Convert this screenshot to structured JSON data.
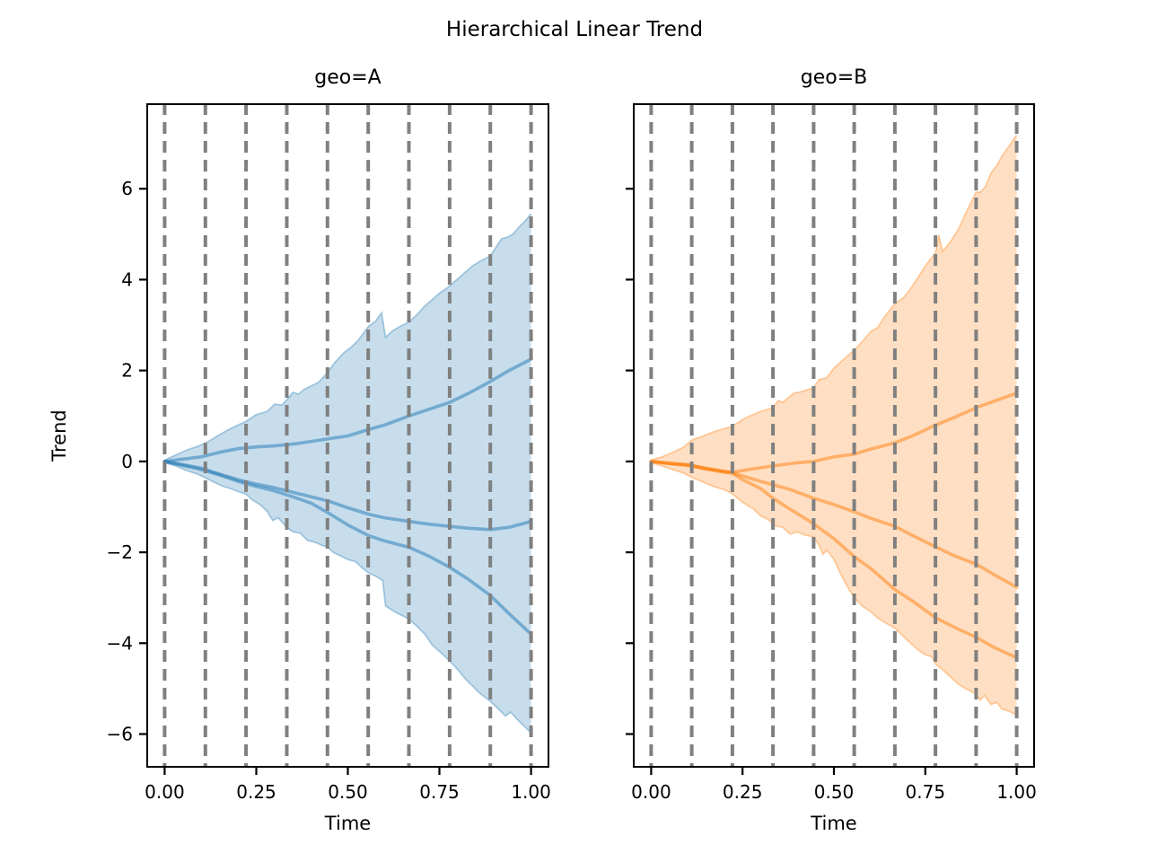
{
  "figure": {
    "suptitle": "Hierarchical Linear Trend",
    "background": "#ffffff"
  },
  "axes": {
    "xlabel": "Time",
    "ylabel": "Trend",
    "x_tick_labels": [
      "0.00",
      "0.25",
      "0.50",
      "0.75",
      "1.00"
    ],
    "x_tick_values": [
      0,
      0.25,
      0.5,
      0.75,
      1.0
    ],
    "y_tick_labels": [
      "6",
      "4",
      "2",
      "0",
      "−2",
      "−4",
      "−6"
    ],
    "y_tick_values": [
      6,
      4,
      2,
      0,
      -2,
      -4,
      -6
    ],
    "xlim": [
      -0.05,
      1.05
    ],
    "ylim": [
      -6.74,
      7.88
    ],
    "vline_positions": [
      0,
      0.1111,
      0.2222,
      0.3333,
      0.4444,
      0.5556,
      0.6667,
      0.7778,
      0.8889,
      1.0
    ],
    "vline_color": "#808080",
    "grid": "dashed-vertical"
  },
  "colors": {
    "geo_a": "#1f77b4",
    "geo_b": "#ff7f0e",
    "spine": "#000000",
    "text": "#000000"
  },
  "chart_data": [
    {
      "type": "area",
      "title": "geo=A",
      "color": "#1f77b4",
      "band": {
        "top_x": [
          0,
          0.03,
          0.06,
          0.09,
          0.111,
          0.14,
          0.17,
          0.2,
          0.222,
          0.25,
          0.28,
          0.3,
          0.32,
          0.333,
          0.35,
          0.365,
          0.38,
          0.4,
          0.42,
          0.444,
          0.465,
          0.489,
          0.51,
          0.53,
          0.556,
          0.575,
          0.592,
          0.603,
          0.62,
          0.64,
          0.667,
          0.69,
          0.71,
          0.73,
          0.75,
          0.778,
          0.8,
          0.82,
          0.84,
          0.86,
          0.889,
          0.905,
          0.92,
          0.935,
          0.95,
          0.97,
          0.985,
          1.0
        ],
        "top_y": [
          0.03,
          0.14,
          0.25,
          0.33,
          0.4,
          0.54,
          0.68,
          0.8,
          0.88,
          1.03,
          1.1,
          1.26,
          1.24,
          1.35,
          1.52,
          1.48,
          1.58,
          1.66,
          1.74,
          1.95,
          2.18,
          2.39,
          2.52,
          2.68,
          2.97,
          3.08,
          3.27,
          2.73,
          2.86,
          2.96,
          3.07,
          3.24,
          3.42,
          3.56,
          3.7,
          3.86,
          4.02,
          4.16,
          4.3,
          4.4,
          4.52,
          4.72,
          4.9,
          4.93,
          5.0,
          5.18,
          5.3,
          5.45
        ],
        "bottom_x": [
          0,
          0.03,
          0.06,
          0.09,
          0.111,
          0.14,
          0.16,
          0.18,
          0.2,
          0.222,
          0.24,
          0.26,
          0.28,
          0.295,
          0.31,
          0.333,
          0.35,
          0.37,
          0.39,
          0.41,
          0.43,
          0.444,
          0.46,
          0.48,
          0.5,
          0.52,
          0.54,
          0.556,
          0.575,
          0.595,
          0.603,
          0.61,
          0.63,
          0.65,
          0.667,
          0.69,
          0.71,
          0.73,
          0.75,
          0.778,
          0.8,
          0.82,
          0.84,
          0.86,
          0.889,
          0.91,
          0.93,
          0.945,
          0.96,
          0.98,
          1.0
        ],
        "bottom_y": [
          -0.03,
          -0.1,
          -0.2,
          -0.28,
          -0.36,
          -0.48,
          -0.55,
          -0.6,
          -0.66,
          -0.72,
          -0.85,
          -0.95,
          -1.1,
          -1.3,
          -1.24,
          -1.45,
          -1.55,
          -1.58,
          -1.74,
          -1.78,
          -1.85,
          -1.88,
          -2.0,
          -2.08,
          -2.16,
          -2.2,
          -2.35,
          -2.45,
          -2.52,
          -2.62,
          -3.18,
          -3.22,
          -3.32,
          -3.4,
          -3.47,
          -3.64,
          -3.8,
          -4.04,
          -4.18,
          -4.39,
          -4.58,
          -4.78,
          -4.94,
          -5.1,
          -5.28,
          -5.44,
          -5.6,
          -5.52,
          -5.66,
          -5.82,
          -5.97
        ]
      },
      "lines": [
        {
          "name": "sample-trend-up",
          "x": [
            0,
            0.05,
            0.1,
            0.15,
            0.2,
            0.25,
            0.3,
            0.35,
            0.4,
            0.45,
            0.5,
            0.556,
            0.6,
            0.667,
            0.72,
            0.778,
            0.83,
            0.889,
            0.94,
            1.0
          ],
          "y": [
            0,
            0.05,
            0.1,
            0.2,
            0.28,
            0.32,
            0.34,
            0.38,
            0.44,
            0.5,
            0.56,
            0.7,
            0.8,
            1.0,
            1.14,
            1.3,
            1.5,
            1.76,
            2.0,
            2.25
          ]
        },
        {
          "name": "sample-trend-mid",
          "x": [
            0,
            0.05,
            0.1,
            0.15,
            0.2,
            0.25,
            0.3,
            0.35,
            0.4,
            0.45,
            0.5,
            0.556,
            0.6,
            0.667,
            0.72,
            0.778,
            0.83,
            0.889,
            0.94,
            1.0
          ],
          "y": [
            0,
            -0.07,
            -0.15,
            -0.28,
            -0.4,
            -0.5,
            -0.58,
            -0.68,
            -0.78,
            -0.88,
            -1.02,
            -1.16,
            -1.24,
            -1.32,
            -1.38,
            -1.43,
            -1.47,
            -1.5,
            -1.45,
            -1.32
          ]
        },
        {
          "name": "sample-trend-low",
          "x": [
            0,
            0.05,
            0.1,
            0.15,
            0.2,
            0.25,
            0.3,
            0.35,
            0.4,
            0.45,
            0.5,
            0.556,
            0.6,
            0.667,
            0.72,
            0.778,
            0.83,
            0.889,
            0.94,
            1.0
          ],
          "y": [
            0,
            -0.09,
            -0.18,
            -0.3,
            -0.44,
            -0.55,
            -0.65,
            -0.78,
            -0.92,
            -1.15,
            -1.4,
            -1.63,
            -1.75,
            -1.89,
            -2.08,
            -2.33,
            -2.6,
            -2.95,
            -3.35,
            -3.8
          ]
        }
      ]
    },
    {
      "type": "area",
      "title": "geo=B",
      "color": "#ff7f0e",
      "band": {
        "top_x": [
          0,
          0.03,
          0.06,
          0.09,
          0.111,
          0.14,
          0.16,
          0.19,
          0.222,
          0.25,
          0.27,
          0.3,
          0.333,
          0.348,
          0.36,
          0.39,
          0.41,
          0.444,
          0.46,
          0.48,
          0.5,
          0.52,
          0.556,
          0.58,
          0.6,
          0.62,
          0.64,
          0.667,
          0.69,
          0.71,
          0.73,
          0.75,
          0.778,
          0.787,
          0.797,
          0.82,
          0.84,
          0.86,
          0.889,
          0.9,
          0.915,
          0.93,
          0.945,
          0.96,
          0.98,
          1.0
        ],
        "top_y": [
          0.03,
          0.1,
          0.2,
          0.32,
          0.47,
          0.55,
          0.62,
          0.7,
          0.77,
          0.92,
          1.0,
          1.1,
          1.18,
          1.34,
          1.3,
          1.5,
          1.53,
          1.62,
          1.8,
          1.84,
          2.05,
          2.2,
          2.45,
          2.66,
          2.85,
          2.95,
          3.2,
          3.47,
          3.6,
          3.8,
          4.05,
          4.3,
          4.59,
          4.98,
          4.62,
          4.85,
          5.1,
          5.45,
          5.93,
          5.92,
          6.05,
          6.35,
          6.5,
          6.72,
          6.95,
          7.18
        ],
        "bottom_x": [
          0,
          0.03,
          0.06,
          0.09,
          0.111,
          0.14,
          0.17,
          0.2,
          0.222,
          0.25,
          0.28,
          0.3,
          0.32,
          0.34,
          0.36,
          0.38,
          0.4,
          0.42,
          0.444,
          0.46,
          0.47,
          0.48,
          0.5,
          0.52,
          0.54,
          0.556,
          0.58,
          0.6,
          0.62,
          0.64,
          0.667,
          0.69,
          0.71,
          0.73,
          0.75,
          0.768,
          0.778,
          0.8,
          0.82,
          0.84,
          0.86,
          0.889,
          0.9,
          0.912,
          0.93,
          0.945,
          0.96,
          0.98,
          1.0
        ],
        "bottom_y": [
          -0.03,
          -0.1,
          -0.18,
          -0.26,
          -0.35,
          -0.45,
          -0.55,
          -0.62,
          -0.71,
          -0.9,
          -1.05,
          -1.2,
          -1.28,
          -1.42,
          -1.45,
          -1.6,
          -1.55,
          -1.62,
          -1.66,
          -1.85,
          -2.05,
          -1.95,
          -2.15,
          -2.5,
          -2.8,
          -3.0,
          -3.2,
          -3.3,
          -3.45,
          -3.55,
          -3.67,
          -3.85,
          -4.0,
          -4.15,
          -4.25,
          -4.3,
          -4.46,
          -4.6,
          -4.75,
          -4.9,
          -5.0,
          -5.12,
          -5.25,
          -5.15,
          -5.35,
          -5.3,
          -5.45,
          -5.5,
          -5.58
        ]
      },
      "lines": [
        {
          "name": "sample-trend-up",
          "x": [
            0,
            0.05,
            0.1,
            0.15,
            0.2,
            0.222,
            0.25,
            0.3,
            0.333,
            0.4,
            0.444,
            0.5,
            0.556,
            0.6,
            0.667,
            0.72,
            0.778,
            0.83,
            0.889,
            0.94,
            1.0
          ],
          "y": [
            0,
            -0.04,
            -0.07,
            -0.15,
            -0.22,
            -0.24,
            -0.2,
            -0.14,
            -0.1,
            -0.03,
            0.0,
            0.1,
            0.16,
            0.27,
            0.41,
            0.58,
            0.8,
            0.97,
            1.18,
            1.33,
            1.5
          ]
        },
        {
          "name": "sample-trend-mid",
          "x": [
            0,
            0.05,
            0.1,
            0.15,
            0.2,
            0.222,
            0.25,
            0.3,
            0.333,
            0.38,
            0.444,
            0.5,
            0.556,
            0.6,
            0.667,
            0.72,
            0.778,
            0.83,
            0.889,
            0.94,
            1.0
          ],
          "y": [
            0,
            -0.04,
            -0.08,
            -0.16,
            -0.22,
            -0.25,
            -0.32,
            -0.44,
            -0.51,
            -0.62,
            -0.81,
            -0.95,
            -1.11,
            -1.25,
            -1.43,
            -1.65,
            -1.88,
            -2.08,
            -2.26,
            -2.5,
            -2.77
          ]
        },
        {
          "name": "sample-trend-low",
          "x": [
            0,
            0.05,
            0.1,
            0.15,
            0.2,
            0.222,
            0.25,
            0.3,
            0.333,
            0.38,
            0.444,
            0.5,
            0.556,
            0.6,
            0.667,
            0.72,
            0.778,
            0.83,
            0.889,
            0.94,
            1.0
          ],
          "y": [
            0,
            -0.05,
            -0.09,
            -0.17,
            -0.24,
            -0.26,
            -0.4,
            -0.6,
            -0.81,
            -1.05,
            -1.37,
            -1.7,
            -2.1,
            -2.35,
            -2.82,
            -3.1,
            -3.44,
            -3.65,
            -3.87,
            -4.1,
            -4.32
          ]
        }
      ]
    }
  ]
}
